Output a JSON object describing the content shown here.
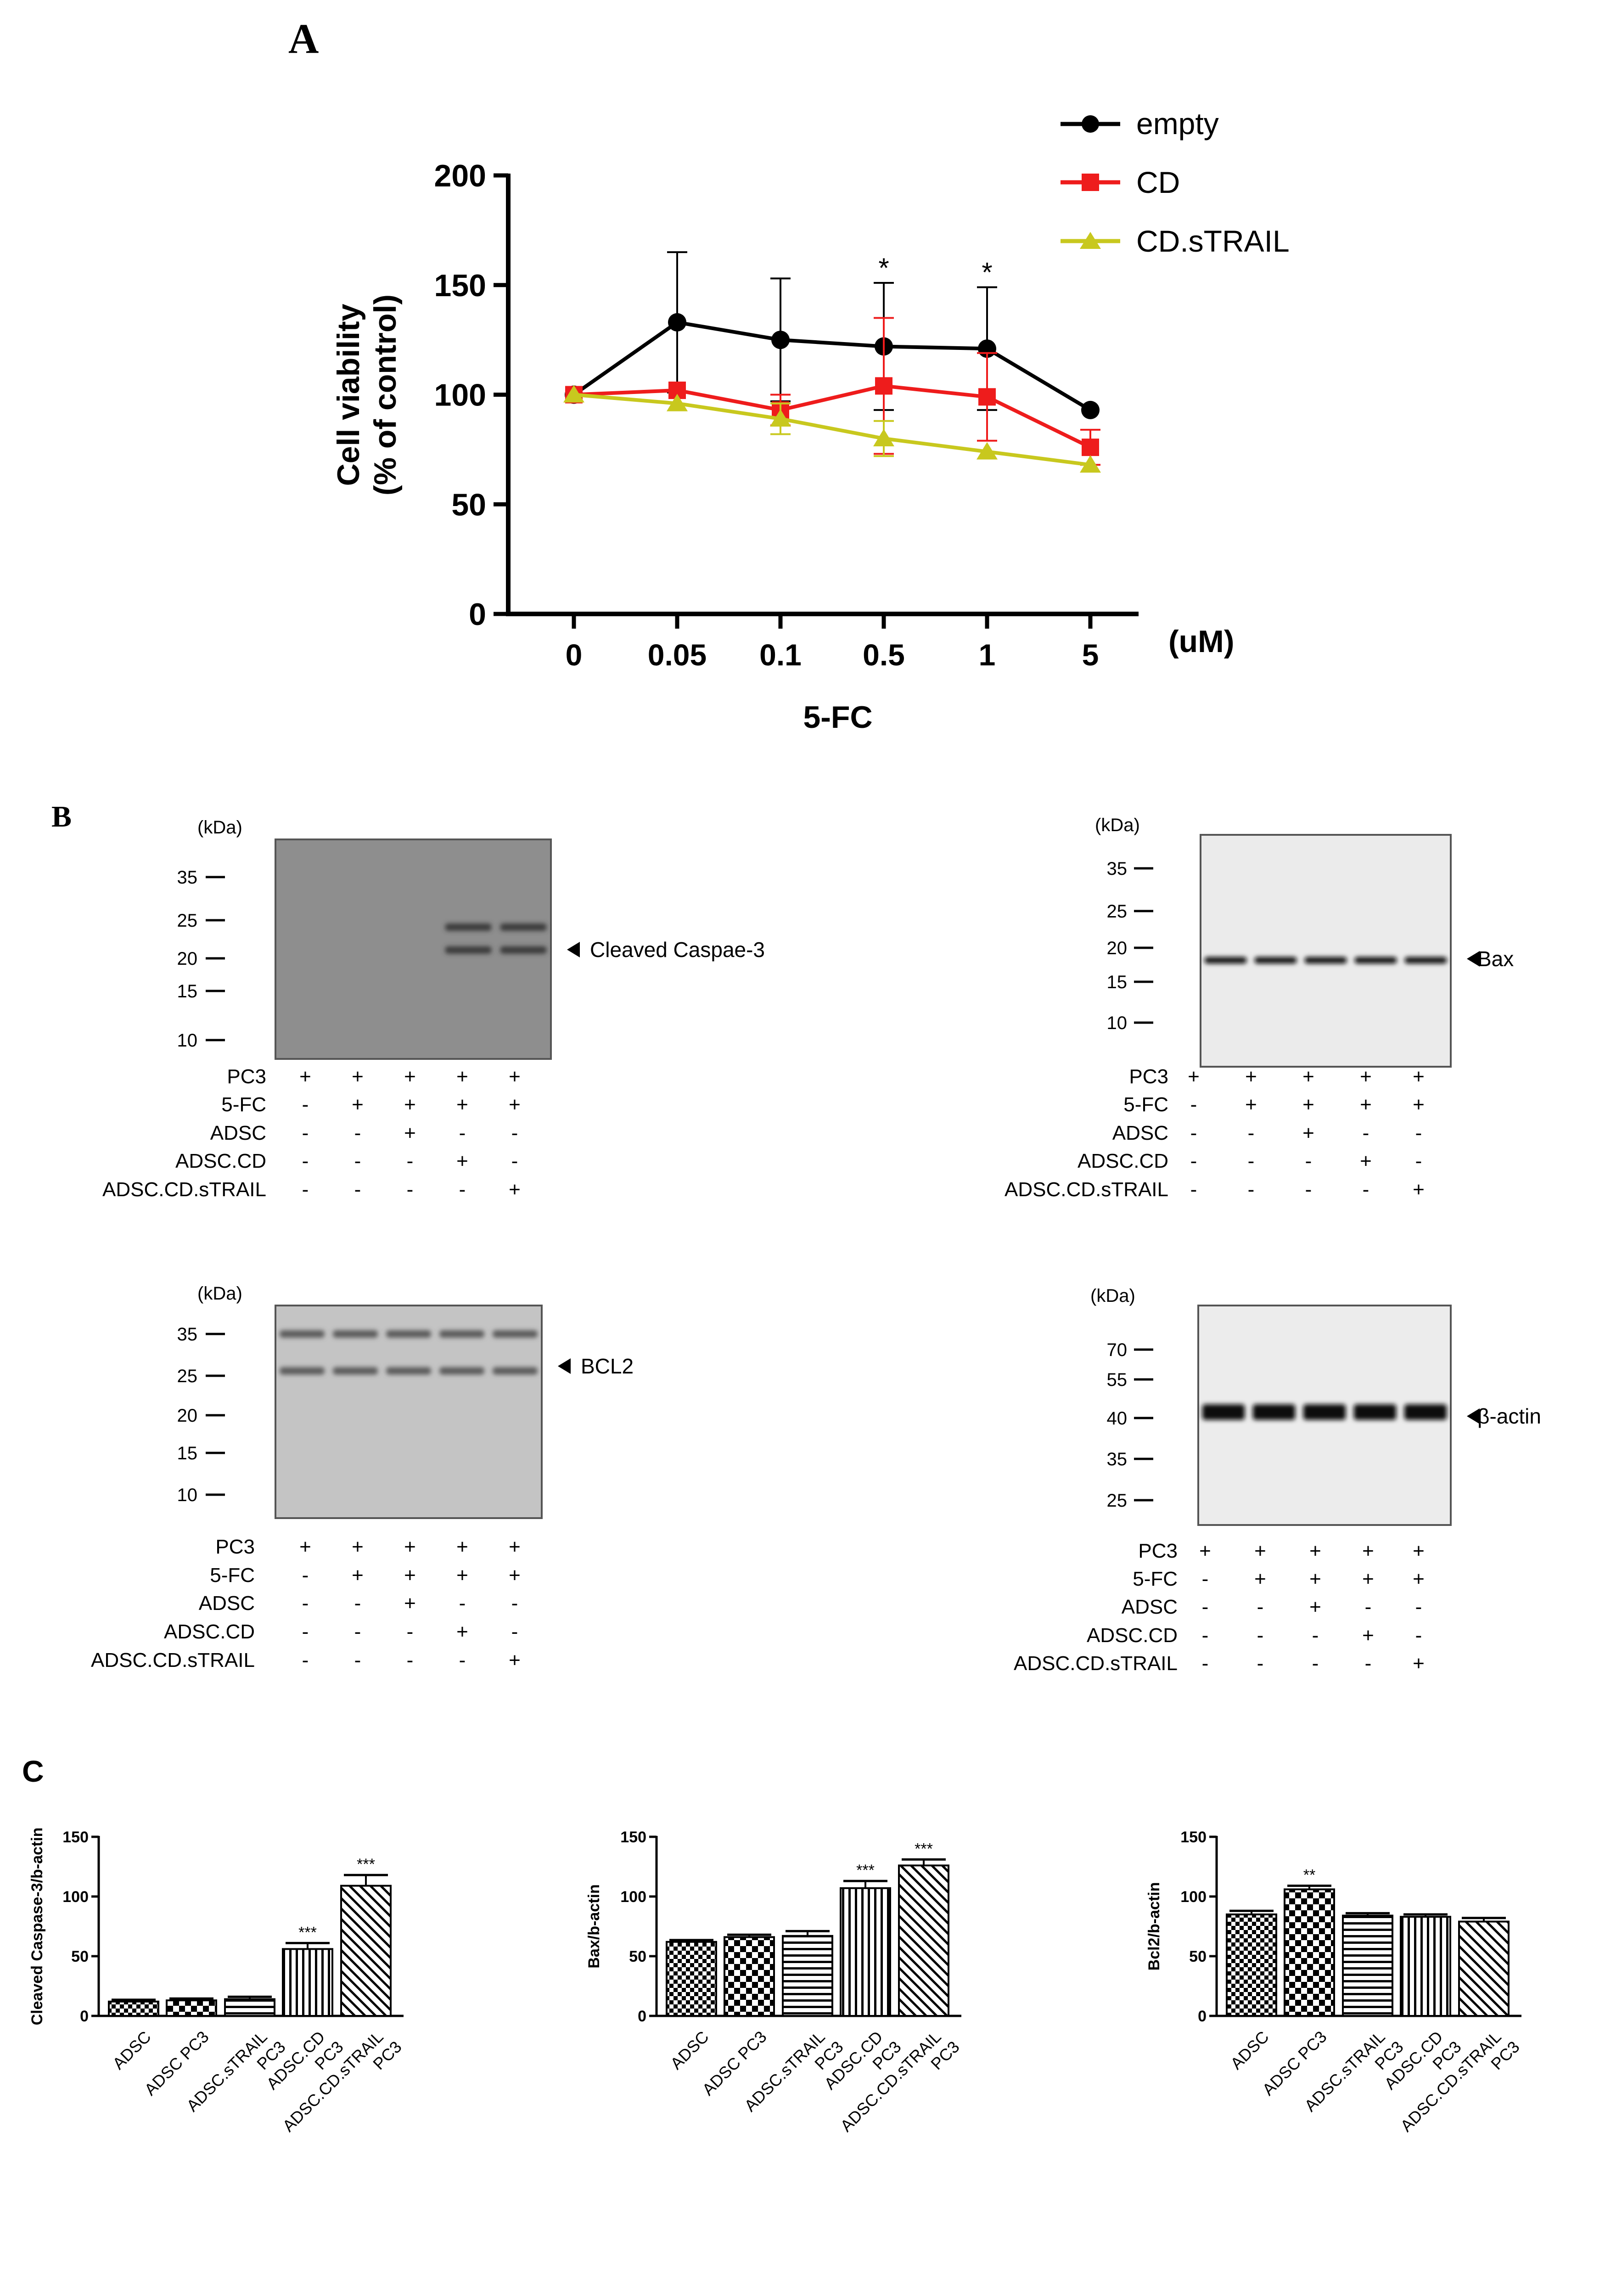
{
  "panels": {
    "A": "A",
    "B": "B",
    "C": "C"
  },
  "colors": {
    "empty": "#000000",
    "CD": "#ee1c1c",
    "CD.sTRAIL": "#c8c81e"
  },
  "chart_data": [
    {
      "type": "line",
      "title": "",
      "xlabel": "5-FC",
      "x_unit": "(uM)",
      "ylabel_line1": "Cell viability",
      "ylabel_line2": "(% of control)",
      "categories": [
        "0",
        "0.05",
        "0.1",
        "0.5",
        "1",
        "5"
      ],
      "ylim": [
        0,
        200
      ],
      "yticks": [
        "0",
        "50",
        "100",
        "150",
        "200"
      ],
      "legend_position": "top-right",
      "significance": [
        {
          "category": "0.5",
          "label": "*"
        },
        {
          "category": "1",
          "label": "*"
        }
      ],
      "series": [
        {
          "name": "empty",
          "marker": "circle",
          "values": [
            100,
            133,
            125,
            122,
            121,
            93
          ],
          "errors": [
            0,
            32,
            28,
            29,
            28,
            0
          ]
        },
        {
          "name": "CD",
          "marker": "square",
          "values": [
            100,
            102,
            93,
            104,
            99,
            76
          ],
          "errors": [
            0,
            0,
            7,
            31,
            20,
            8
          ]
        },
        {
          "name": "CD.sTRAIL",
          "marker": "triangle",
          "values": [
            100,
            96,
            89,
            80,
            74,
            68
          ],
          "errors": [
            0,
            0,
            7,
            8,
            0,
            0
          ]
        }
      ]
    },
    {
      "type": "bar",
      "ylabel": "Cleaved Caspase-3/b-actin",
      "ylim": [
        0,
        150
      ],
      "yticks": [
        "0",
        "50",
        "100",
        "150"
      ],
      "categories": [
        [
          "ADSC"
        ],
        [
          "ADSC PC3"
        ],
        [
          "ADSC.sTRAIL",
          "PC3"
        ],
        [
          "ADSC.CD",
          "PC3"
        ],
        [
          "ADSC.CD.sTRAIL",
          "PC3"
        ]
      ],
      "values": [
        12,
        13,
        14,
        56,
        109
      ],
      "errors": [
        1.5,
        1.5,
        2,
        5,
        9
      ],
      "significance": [
        "",
        "",
        "",
        "***",
        "***"
      ]
    },
    {
      "type": "bar",
      "ylabel": "Bax/b-actin",
      "ylim": [
        0,
        150
      ],
      "yticks": [
        "0",
        "50",
        "100",
        "150"
      ],
      "categories": [
        [
          "ADSC"
        ],
        [
          "ADSC PC3"
        ],
        [
          "ADSC.sTRAIL",
          "PC3"
        ],
        [
          "ADSC.CD",
          "PC3"
        ],
        [
          "ADSC.CD.sTRAIL",
          "PC3"
        ]
      ],
      "values": [
        62,
        66,
        67,
        107,
        126
      ],
      "errors": [
        1.5,
        2,
        4,
        6,
        5
      ],
      "significance": [
        "",
        "",
        "",
        "***",
        "***"
      ]
    },
    {
      "type": "bar",
      "ylabel": "Bcl2/b-actin",
      "ylim": [
        0,
        150
      ],
      "yticks": [
        "0",
        "50",
        "100",
        "150"
      ],
      "categories": [
        [
          "ADSC"
        ],
        [
          "ADSC PC3"
        ],
        [
          "ADSC.sTRAIL",
          "PC3"
        ],
        [
          "ADSC.CD",
          "PC3"
        ],
        [
          "ADSC.CD.sTRAIL",
          "PC3"
        ]
      ],
      "values": [
        85,
        106,
        84,
        83,
        79
      ],
      "errors": [
        3,
        3,
        2,
        2,
        3
      ],
      "significance": [
        "",
        "**",
        "",
        "",
        ""
      ]
    }
  ],
  "blots": [
    {
      "target": "Cleaved Caspae-3",
      "unit": "(kDa)",
      "markers": [
        "35",
        "25",
        "20",
        "15",
        "10"
      ],
      "bands": [
        {
          "lanes": [
            4,
            5
          ],
          "kDa": 24
        },
        {
          "lanes": [
            4,
            5
          ],
          "kDa": 21
        }
      ],
      "rows": [
        {
          "label": "PC3",
          "values": [
            "+",
            "+",
            "+",
            "+",
            "+"
          ]
        },
        {
          "label": "5-FC",
          "values": [
            "-",
            "+",
            "+",
            "+",
            "+"
          ]
        },
        {
          "label": "ADSC",
          "values": [
            "-",
            "-",
            "+",
            "-",
            "-"
          ]
        },
        {
          "label": "ADSC.CD",
          "values": [
            "-",
            "-",
            "-",
            "+",
            "-"
          ]
        },
        {
          "label": "ADSC.CD.sTRAIL",
          "values": [
            "-",
            "-",
            "-",
            "-",
            "+"
          ]
        }
      ]
    },
    {
      "target": "Bax",
      "unit": "(kDa)",
      "markers": [
        "35",
        "25",
        "20",
        "15",
        "10"
      ],
      "bands": [
        {
          "lanes": [
            1,
            2,
            3,
            4,
            5
          ],
          "kDa": 18
        }
      ],
      "rows": [
        {
          "label": "PC3",
          "values": [
            "+",
            "+",
            "+",
            "+",
            "+"
          ]
        },
        {
          "label": "5-FC",
          "values": [
            "-",
            "+",
            "+",
            "+",
            "+"
          ]
        },
        {
          "label": "ADSC",
          "values": [
            "-",
            "-",
            "+",
            "-",
            "-"
          ]
        },
        {
          "label": "ADSC.CD",
          "values": [
            "-",
            "-",
            "-",
            "+",
            "-"
          ]
        },
        {
          "label": "ADSC.CD.sTRAIL",
          "values": [
            "-",
            "-",
            "-",
            "-",
            "+"
          ]
        }
      ]
    },
    {
      "target": "BCL2",
      "unit": "(kDa)",
      "markers": [
        "35",
        "25",
        "20",
        "15",
        "10"
      ],
      "bands": [
        {
          "lanes": [
            1,
            2,
            3,
            4,
            5
          ],
          "kDa": 26
        },
        {
          "lanes": [
            1,
            2,
            3,
            4,
            5
          ],
          "kDa": 35
        }
      ],
      "rows": [
        {
          "label": "PC3",
          "values": [
            "+",
            "+",
            "+",
            "+",
            "+"
          ]
        },
        {
          "label": "5-FC",
          "values": [
            "-",
            "+",
            "+",
            "+",
            "+"
          ]
        },
        {
          "label": "ADSC",
          "values": [
            "-",
            "-",
            "+",
            "-",
            "-"
          ]
        },
        {
          "label": "ADSC.CD",
          "values": [
            "-",
            "-",
            "-",
            "+",
            "-"
          ]
        },
        {
          "label": "ADSC.CD.sTRAIL",
          "values": [
            "-",
            "-",
            "-",
            "-",
            "+"
          ]
        }
      ]
    },
    {
      "target": "β-actin",
      "unit": "(kDa)",
      "markers": [
        "70",
        "55",
        "40",
        "35",
        "25"
      ],
      "bands": [
        {
          "lanes": [
            1,
            2,
            3,
            4,
            5
          ],
          "kDa": 42
        }
      ],
      "rows": [
        {
          "label": "PC3",
          "values": [
            "+",
            "+",
            "+",
            "+",
            "+"
          ]
        },
        {
          "label": "5-FC",
          "values": [
            "-",
            "+",
            "+",
            "+",
            "+"
          ]
        },
        {
          "label": "ADSC",
          "values": [
            "-",
            "-",
            "+",
            "-",
            "-"
          ]
        },
        {
          "label": "ADSC.CD",
          "values": [
            "-",
            "-",
            "-",
            "+",
            "-"
          ]
        },
        {
          "label": "ADSC.CD.sTRAIL",
          "values": [
            "-",
            "-",
            "-",
            "-",
            "+"
          ]
        }
      ]
    }
  ]
}
